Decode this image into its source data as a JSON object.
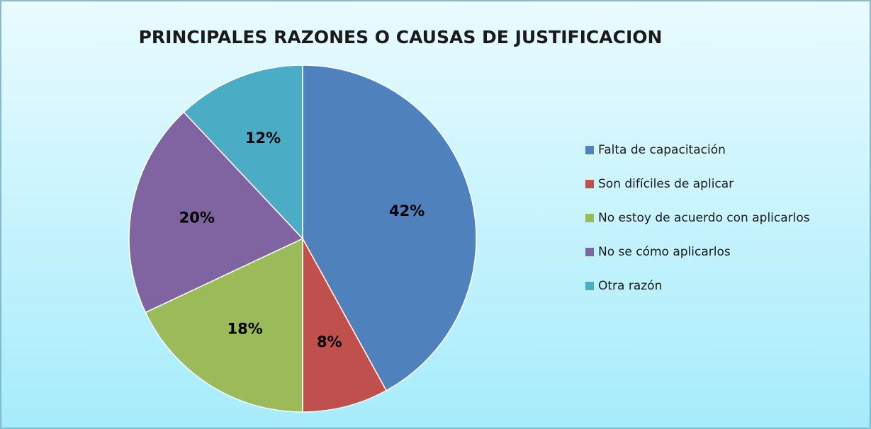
{
  "chart_data": {
    "type": "pie",
    "title": "PRINCIPALES RAZONES O CAUSAS DE JUSTIFICACION",
    "categories": [
      "Falta de capacitación",
      "Son difíciles de aplicar",
      "No estoy de acuerdo con aplicarlos",
      "No se cómo aplicarlos",
      "Otra razón"
    ],
    "values": [
      42,
      8,
      18,
      20,
      12
    ],
    "value_labels": [
      "42%",
      "8%",
      "18%",
      "20%",
      "12%"
    ],
    "colors": [
      "#4f81bd",
      "#c0504d",
      "#9bbb59",
      "#8064a2",
      "#4bacc6"
    ],
    "legend": "right"
  }
}
